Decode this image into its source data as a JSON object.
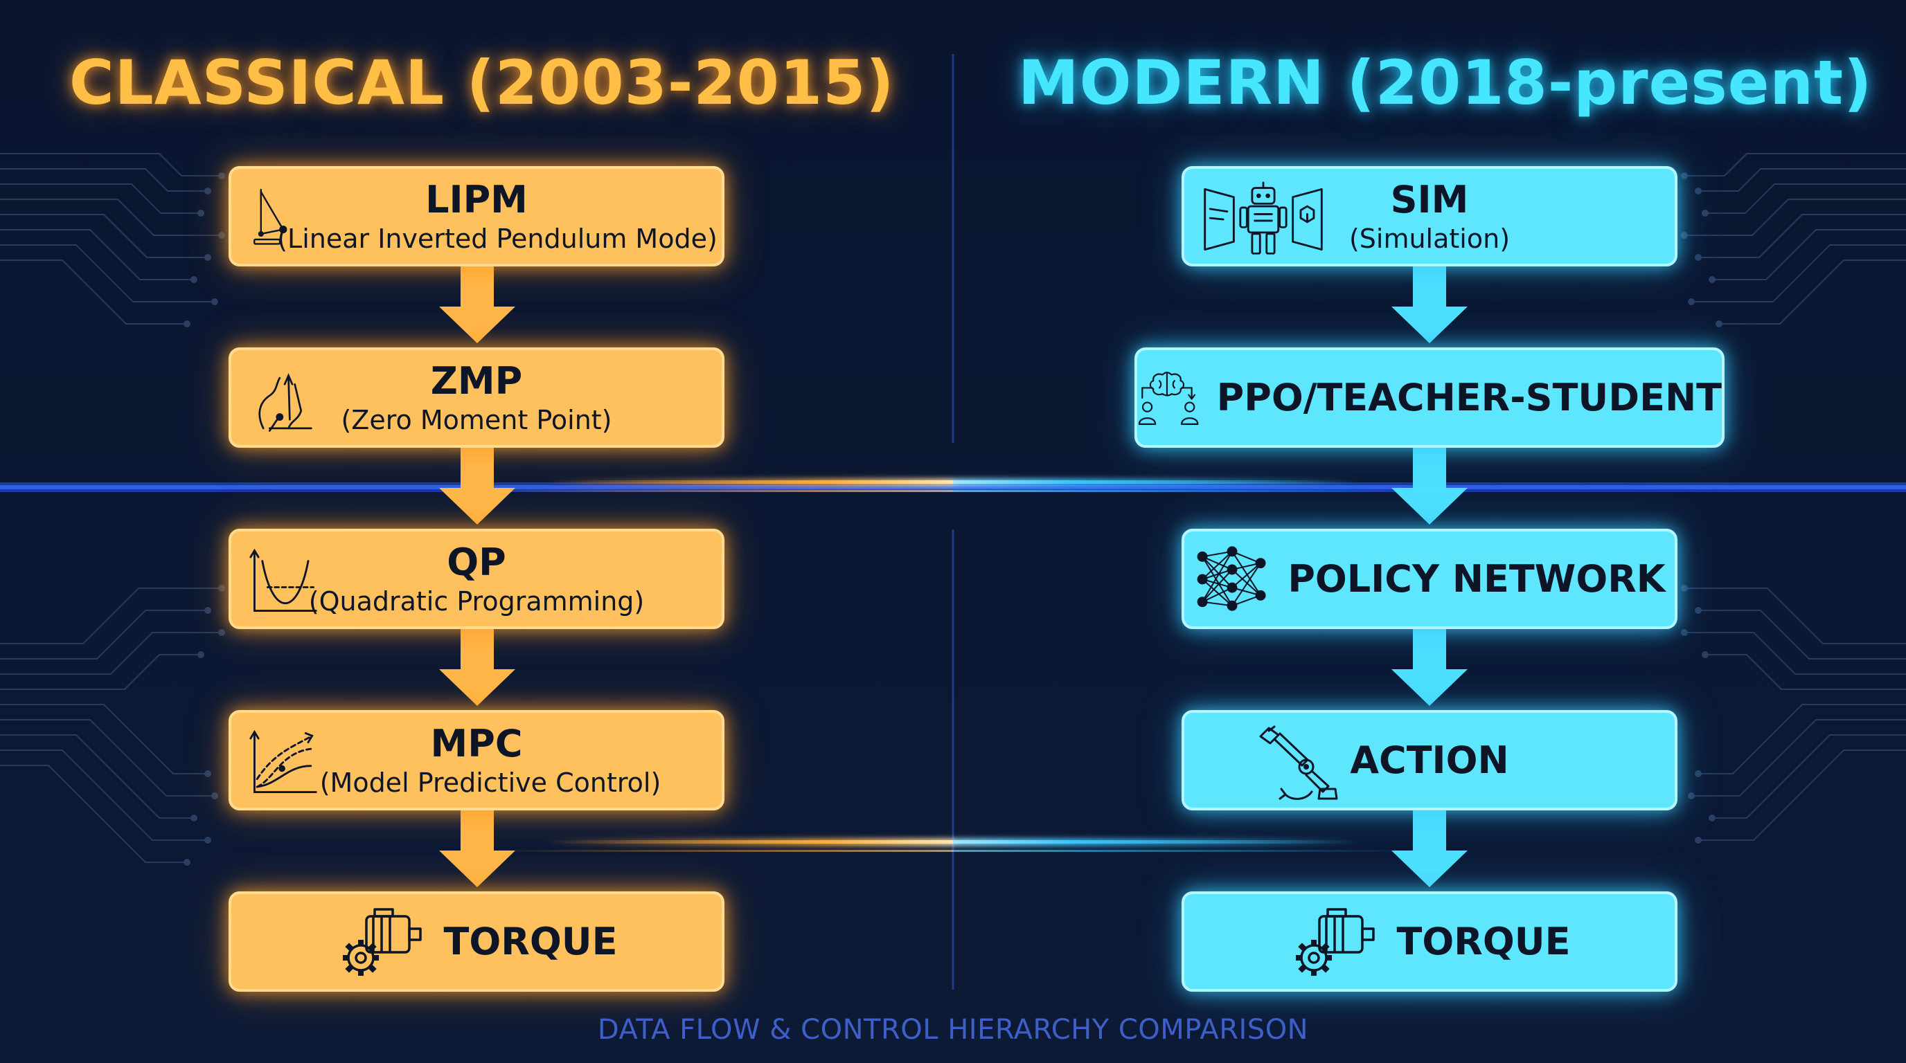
{
  "left_column": {
    "title": "CLASSICAL (2003-2015)",
    "accent": "#ffc15e",
    "steps": [
      {
        "title": "LIPM",
        "subtitle": "(Linear Inverted Pendulum Mode)",
        "icon": "pendulum-icon"
      },
      {
        "title": "ZMP",
        "subtitle": "(Zero Moment Point)",
        "icon": "foot-icon"
      },
      {
        "title": "QP",
        "subtitle": "(Quadratic Programming)",
        "icon": "parabola-graph-icon"
      },
      {
        "title": "MPC",
        "subtitle": "(Model Predictive Control)",
        "icon": "prediction-graph-icon"
      },
      {
        "title": "TORQUE",
        "subtitle": "",
        "icon": "motor-gear-icon"
      }
    ]
  },
  "right_column": {
    "title": "MODERN (2018-present)",
    "accent": "#5fe6ff",
    "steps": [
      {
        "title": "SIM",
        "subtitle": "(Simulation)",
        "icon": "robot-simulation-icon"
      },
      {
        "title": "PPO/TEACHER-STUDENT",
        "subtitle": "",
        "icon": "brain-teacher-student-icon"
      },
      {
        "title": "POLICY NETWORK",
        "subtitle": "",
        "icon": "neural-network-icon"
      },
      {
        "title": "ACTION",
        "subtitle": "",
        "icon": "robot-arm-icon"
      },
      {
        "title": "TORQUE",
        "subtitle": "",
        "icon": "motor-gear-icon"
      }
    ]
  },
  "footer": "DATA FLOW & CONTROL HIERARCHY COMPARISON"
}
